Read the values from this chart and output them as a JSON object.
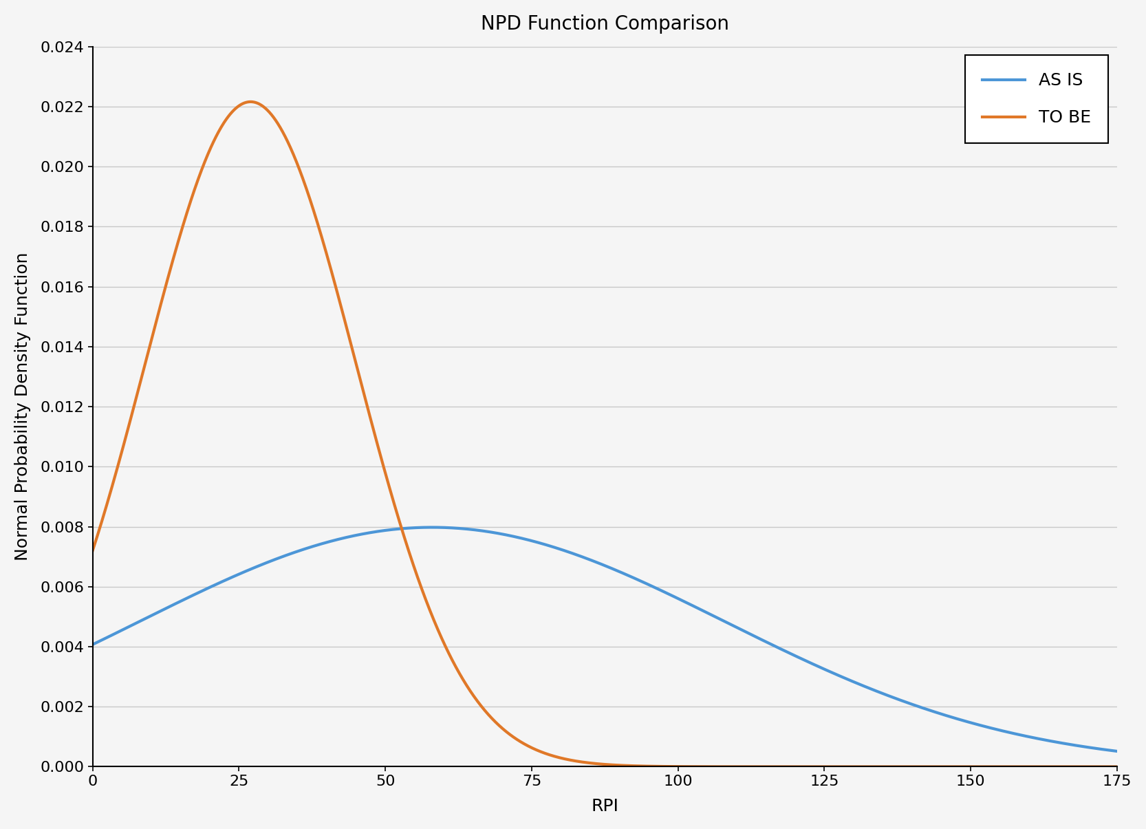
{
  "title": "NPD Function Comparison",
  "xlabel": "RPI",
  "ylabel": "Normal Probability Density Function",
  "xlim": [
    0,
    175
  ],
  "ylim": [
    0,
    0.024
  ],
  "xticks": [
    0,
    25,
    50,
    75,
    100,
    125,
    150,
    175
  ],
  "yticks": [
    0.0,
    0.002,
    0.004,
    0.006,
    0.008,
    0.01,
    0.012,
    0.014,
    0.016,
    0.018,
    0.02,
    0.022,
    0.024
  ],
  "as_is": {
    "mean": 58,
    "std": 50,
    "label": "AS IS",
    "color": "#4C96D7",
    "linewidth": 3.0
  },
  "to_be": {
    "mean": 27,
    "std": 18,
    "label": "TO BE",
    "color": "#E07828",
    "linewidth": 3.0
  },
  "legend_loc": "upper right",
  "legend_fontsize": 18,
  "title_fontsize": 20,
  "label_fontsize": 18,
  "tick_fontsize": 16,
  "background_color": "#f5f5f5",
  "plot_background": "#f5f5f5",
  "grid_color": "#c8c8c8",
  "grid_linewidth": 1.0
}
